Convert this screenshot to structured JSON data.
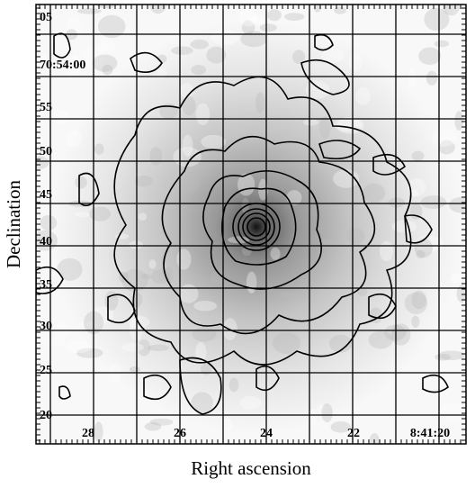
{
  "axes": {
    "xlabel": "Right ascension",
    "ylabel": "Declination",
    "xtick_labels": [
      "28",
      "26",
      "24",
      "22",
      "8:41:20"
    ],
    "ytick_labels": [
      "05",
      "70:54:00",
      "55",
      "50",
      "45",
      "40",
      "35",
      "30",
      "25",
      "20"
    ]
  }
}
